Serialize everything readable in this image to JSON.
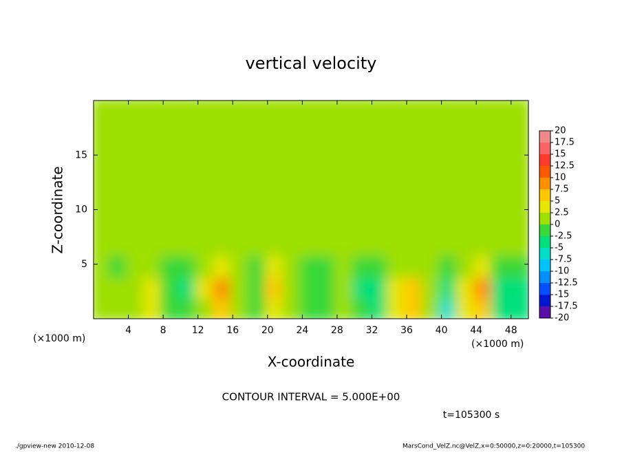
{
  "chart_data": {
    "type": "heatmap",
    "title": "vertical velocity",
    "xlabel": "X-coordinate",
    "ylabel": "Z-coordinate",
    "x_unit_label": "(×1000 m)",
    "xlim": [
      0,
      50
    ],
    "ylim": [
      0,
      20
    ],
    "xticks": [
      4,
      8,
      12,
      16,
      20,
      24,
      28,
      32,
      36,
      40,
      44,
      48
    ],
    "yticks": [
      5,
      10,
      15
    ],
    "x": [
      1,
      3,
      5,
      7,
      9,
      11,
      13,
      15,
      17,
      19,
      21,
      23,
      25,
      27,
      29,
      31,
      33,
      35,
      37,
      39,
      41,
      43,
      45,
      47,
      49
    ],
    "y": [
      1,
      3,
      5,
      7,
      9,
      11,
      13,
      15,
      17,
      19
    ],
    "values": [
      [
        1,
        2,
        2,
        3,
        -1,
        -2,
        2,
        6,
        1,
        -2,
        4,
        1,
        -2,
        -1,
        1,
        -2,
        -3,
        3,
        6,
        2,
        -6,
        3,
        6,
        -4,
        -3
      ],
      [
        1,
        1,
        2,
        3,
        -1,
        -3,
        3,
        8,
        2,
        -2,
        7,
        2,
        -2,
        -2,
        2,
        -4,
        -4,
        4,
        7,
        2,
        -5,
        4,
        8,
        -5,
        -3
      ],
      [
        0,
        -1,
        1,
        0,
        -1,
        -1,
        1,
        3,
        0,
        -1,
        3,
        0,
        -1,
        -1,
        0,
        -2,
        -2,
        1,
        2,
        0,
        -2,
        2,
        3,
        -2,
        -1
      ],
      [
        0,
        0,
        0,
        0,
        0,
        0,
        0,
        0,
        0,
        0,
        0,
        0,
        0,
        0,
        0,
        0,
        0,
        0,
        0,
        0,
        0,
        0,
        0,
        0,
        0
      ],
      [
        0,
        0,
        0,
        0,
        0,
        0,
        0,
        0,
        0,
        0,
        0,
        0,
        0,
        0,
        0,
        0,
        0,
        0,
        0,
        0,
        0,
        0,
        0,
        0,
        0
      ],
      [
        0,
        0,
        0,
        0,
        0,
        0,
        0,
        0,
        0,
        0,
        0,
        0,
        0,
        0,
        0,
        0,
        0,
        0,
        0,
        0,
        0,
        0,
        0,
        0,
        0
      ],
      [
        0,
        0,
        0,
        0,
        0,
        0,
        0,
        0,
        0,
        0,
        1,
        1,
        0,
        0,
        0,
        0,
        0,
        0,
        0,
        0,
        0,
        0,
        0,
        0,
        0
      ],
      [
        0,
        0,
        0,
        0,
        0,
        0,
        0,
        0,
        0,
        0,
        1,
        1,
        0,
        0,
        0,
        0,
        0,
        0,
        0,
        0,
        0,
        0,
        0,
        0,
        0
      ],
      [
        0,
        0,
        0,
        0,
        0,
        0,
        0,
        0,
        0,
        0,
        1,
        0,
        0,
        0,
        0,
        0,
        0,
        0,
        0,
        0,
        0,
        0,
        0,
        0,
        0
      ],
      [
        0,
        0,
        0,
        0,
        0,
        0,
        0,
        0,
        0,
        0,
        0,
        0,
        0,
        0,
        0,
        0,
        0,
        0,
        0,
        0,
        0,
        0,
        0,
        0,
        0
      ]
    ],
    "colorbar_ticks": [
      20,
      17.5,
      15,
      12.5,
      10,
      7.5,
      5,
      2.5,
      0,
      -2.5,
      -5,
      -7.5,
      -10,
      -12.5,
      -15,
      -17.5,
      -20
    ],
    "colorbar_colors": [
      "#f08a8a",
      "#ff6464",
      "#ff3a2a",
      "#ff5a00",
      "#ff9000",
      "#ffc800",
      "#e6e600",
      "#9ee000",
      "#38d838",
      "#00e07a",
      "#00e0c8",
      "#00c4ff",
      "#0090ff",
      "#0050ff",
      "#0018d0",
      "#5a10a8"
    ],
    "annotation": "CONTOUR INTERVAL = 5.000E+00",
    "time_label": "t=105300 s",
    "footer_left": "./gpview-new  2010-12-08",
    "footer_right": "MarsCond_VelZ.nc@VelZ,x=0:50000,z=0:20000,t=105300"
  }
}
